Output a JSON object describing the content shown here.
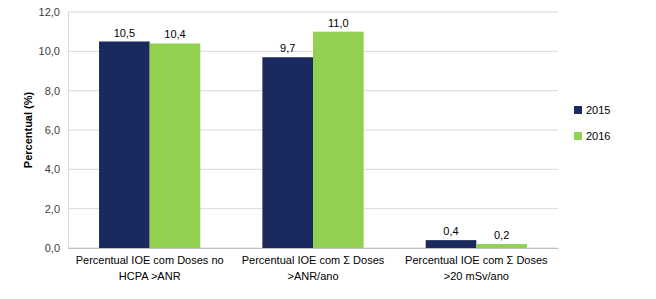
{
  "chart_data": {
    "type": "bar",
    "y_label": "Percentual (%)",
    "categories": [
      "Percentual IOE com Doses no\nHCPA >ANR",
      "Percentual IOE com Σ Doses\n>ANR/ano",
      "Percentual IOE com Σ Doses\n>20 mSv/ano"
    ],
    "series": [
      {
        "name": "2015",
        "color": "#1b2a5e",
        "values": [
          10.5,
          9.7,
          0.4
        ],
        "value_labels": [
          "10,5",
          "9,7",
          "0,4"
        ]
      },
      {
        "name": "2016",
        "color": "#92d050",
        "values": [
          10.4,
          11.0,
          0.2
        ],
        "value_labels": [
          "10,4",
          "11,0",
          "0,2"
        ]
      }
    ],
    "ylim": [
      0,
      12
    ],
    "yticks": [
      {
        "value": 0,
        "label": "0,0"
      },
      {
        "value": 2,
        "label": "2,0"
      },
      {
        "value": 4,
        "label": "4,0"
      },
      {
        "value": 6,
        "label": "6,0"
      },
      {
        "value": 8,
        "label": "8,0"
      },
      {
        "value": 10,
        "label": "10,0"
      },
      {
        "value": 12,
        "label": "12,0"
      }
    ],
    "grid": true,
    "legend": "right",
    "data_labels": true
  }
}
